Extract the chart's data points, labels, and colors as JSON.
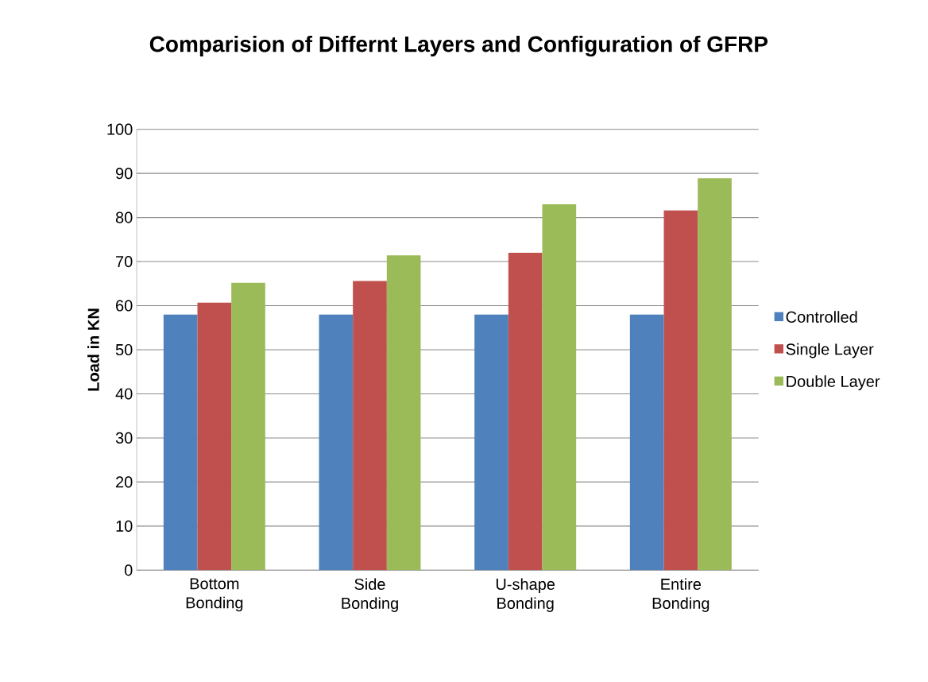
{
  "chart_data": {
    "type": "bar",
    "title": "Comparision of Differnt Layers and Configuration of GFRP",
    "ylabel": "Load in KN",
    "categories": [
      "Bottom Bonding",
      "Side Bonding",
      "U-shape Bonding",
      "Entire Bonding"
    ],
    "series": [
      {
        "name": "Controlled",
        "color": "#4f81bd",
        "values": [
          58,
          58,
          58,
          58
        ]
      },
      {
        "name": "Single Layer",
        "color": "#c0504d",
        "values": [
          60.7,
          65.6,
          72,
          81.6
        ]
      },
      {
        "name": "Double Layer",
        "color": "#9bbb59",
        "values": [
          65.2,
          71.4,
          83,
          88.9
        ]
      }
    ],
    "ylim": [
      0,
      100
    ],
    "yticks": [
      0,
      10,
      20,
      30,
      40,
      50,
      60,
      70,
      80,
      90,
      100
    ],
    "grid": "y",
    "legend": "right"
  }
}
